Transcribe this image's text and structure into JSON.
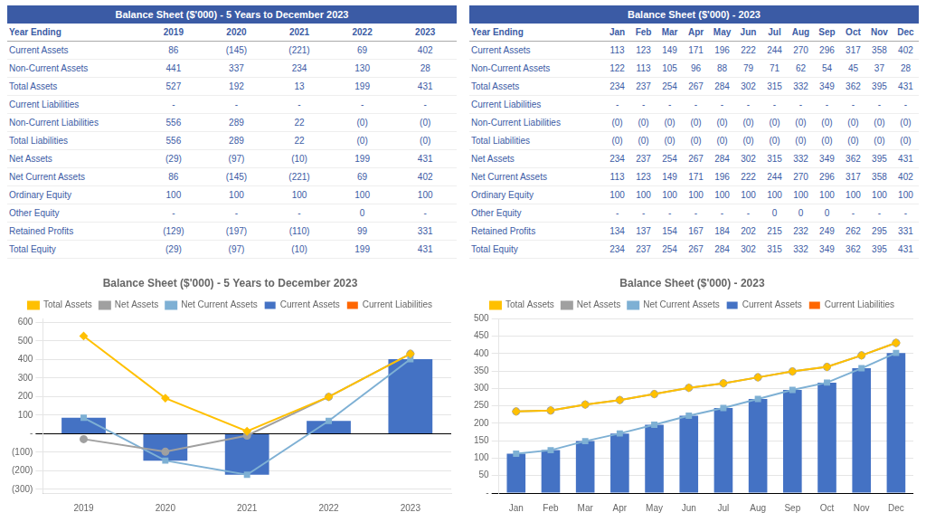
{
  "chart_data": [
    {
      "type": "table",
      "title": "Balance Sheet ($'000) - 5 Years to December 2023",
      "color": "#3B5BA5",
      "row_header": "Year Ending",
      "categories": [
        "2019",
        "2020",
        "2021",
        "2022",
        "2023"
      ],
      "rows": [
        {
          "name": "Current Assets",
          "cells": [
            "86",
            "(145)",
            "(221)",
            "69",
            "402"
          ]
        },
        {
          "name": "Non-Current Assets",
          "cells": [
            "441",
            "337",
            "234",
            "130",
            "28"
          ]
        },
        {
          "name": "Total Assets",
          "cells": [
            "527",
            "192",
            "13",
            "199",
            "431"
          ]
        },
        {
          "name": "Current Liabilities",
          "cells": [
            "-",
            "-",
            "-",
            "-",
            "-"
          ]
        },
        {
          "name": "Non-Current Liabilities",
          "cells": [
            "556",
            "289",
            "22",
            "(0)",
            "(0)"
          ]
        },
        {
          "name": "Total Liabilities",
          "cells": [
            "556",
            "289",
            "22",
            "(0)",
            "(0)"
          ]
        },
        {
          "name": "Net Assets",
          "cells": [
            "(29)",
            "(97)",
            "(10)",
            "199",
            "431"
          ]
        },
        {
          "name": "Net Current Assets",
          "cells": [
            "86",
            "(145)",
            "(221)",
            "69",
            "402"
          ]
        },
        {
          "name": "Ordinary Equity",
          "cells": [
            "100",
            "100",
            "100",
            "100",
            "100"
          ]
        },
        {
          "name": "Other Equity",
          "cells": [
            "-",
            "-",
            "-",
            "0",
            "-"
          ]
        },
        {
          "name": "Retained Profits",
          "cells": [
            "(129)",
            "(197)",
            "(110)",
            "99",
            "331"
          ]
        },
        {
          "name": "Total Equity",
          "cells": [
            "(29)",
            "(97)",
            "(10)",
            "199",
            "431"
          ]
        }
      ]
    },
    {
      "type": "table",
      "title": "Balance Sheet ($'000) - 2023",
      "color": "#3B5BA5",
      "row_header": "Year Ending",
      "categories": [
        "Jan",
        "Feb",
        "Mar",
        "Apr",
        "May",
        "Jun",
        "Jul",
        "Aug",
        "Sep",
        "Oct",
        "Nov",
        "Dec"
      ],
      "rows": [
        {
          "name": "Current Assets",
          "cells": [
            "113",
            "123",
            "149",
            "171",
            "196",
            "222",
            "244",
            "270",
            "296",
            "317",
            "358",
            "402"
          ]
        },
        {
          "name": "Non-Current Assets",
          "cells": [
            "122",
            "113",
            "105",
            "96",
            "88",
            "79",
            "71",
            "62",
            "54",
            "45",
            "37",
            "28"
          ]
        },
        {
          "name": "Total Assets",
          "cells": [
            "234",
            "237",
            "254",
            "267",
            "284",
            "302",
            "315",
            "332",
            "349",
            "362",
            "395",
            "431"
          ]
        },
        {
          "name": "Current Liabilities",
          "cells": [
            "-",
            "-",
            "-",
            "-",
            "-",
            "-",
            "-",
            "-",
            "-",
            "-",
            "-",
            "-"
          ]
        },
        {
          "name": "Non-Current Liabilities",
          "cells": [
            "(0)",
            "(0)",
            "(0)",
            "(0)",
            "(0)",
            "(0)",
            "(0)",
            "(0)",
            "(0)",
            "(0)",
            "(0)",
            "(0)"
          ]
        },
        {
          "name": "Total Liabilities",
          "cells": [
            "(0)",
            "(0)",
            "(0)",
            "(0)",
            "(0)",
            "(0)",
            "(0)",
            "(0)",
            "(0)",
            "(0)",
            "(0)",
            "(0)"
          ]
        },
        {
          "name": "Net Assets",
          "cells": [
            "234",
            "237",
            "254",
            "267",
            "284",
            "302",
            "315",
            "332",
            "349",
            "362",
            "395",
            "431"
          ]
        },
        {
          "name": "Net Current Assets",
          "cells": [
            "113",
            "123",
            "149",
            "171",
            "196",
            "222",
            "244",
            "270",
            "296",
            "317",
            "358",
            "402"
          ]
        },
        {
          "name": "Ordinary Equity",
          "cells": [
            "100",
            "100",
            "100",
            "100",
            "100",
            "100",
            "100",
            "100",
            "100",
            "100",
            "100",
            "100"
          ]
        },
        {
          "name": "Other Equity",
          "cells": [
            "-",
            "-",
            "-",
            "-",
            "-",
            "-",
            "0",
            "0",
            "0",
            "-",
            "-",
            "-"
          ]
        },
        {
          "name": "Retained Profits",
          "cells": [
            "134",
            "137",
            "154",
            "167",
            "184",
            "202",
            "215",
            "232",
            "249",
            "262",
            "295",
            "331"
          ]
        },
        {
          "name": "Total Equity",
          "cells": [
            "234",
            "237",
            "254",
            "267",
            "284",
            "302",
            "315",
            "332",
            "349",
            "362",
            "395",
            "431"
          ]
        }
      ]
    },
    {
      "type": "bar",
      "title": "Balance Sheet ($'000) - 5 Years to December 2023",
      "categories": [
        "2019",
        "2020",
        "2021",
        "2022",
        "2023"
      ],
      "series": [
        {
          "name": "Current Assets",
          "type": "bar",
          "color": "#4472C4",
          "values": [
            86,
            -145,
            -221,
            69,
            402
          ]
        },
        {
          "name": "Current Liabilities",
          "type": "bar",
          "color": "#FF6600",
          "values": [
            null,
            null,
            null,
            null,
            null
          ]
        },
        {
          "name": "Total Assets",
          "type": "line",
          "color": "#FFC000",
          "marker": "diamond",
          "values": [
            527,
            192,
            13,
            199,
            431
          ]
        },
        {
          "name": "Net Assets",
          "type": "line",
          "color": "#A0A0A0",
          "marker": "circle",
          "values": [
            -29,
            -97,
            -10,
            199,
            431
          ]
        },
        {
          "name": "Net Current Assets",
          "type": "line",
          "color": "#7EB0D4",
          "marker": "square",
          "values": [
            86,
            -145,
            -221,
            69,
            402
          ]
        }
      ],
      "ylim": [
        -320,
        620
      ],
      "yticks": [
        {
          "value": -300,
          "label": "(300)"
        },
        {
          "value": -200,
          "label": "(200)"
        },
        {
          "value": -100,
          "label": "(100)"
        },
        {
          "value": 0,
          "label": "-"
        },
        100,
        200,
        300,
        400,
        500,
        600
      ],
      "grid": true,
      "legend": "top"
    },
    {
      "type": "bar",
      "title": "Balance Sheet ($'000) - 2023",
      "categories": [
        "Jan",
        "Feb",
        "Mar",
        "Apr",
        "May",
        "Jun",
        "Jul",
        "Aug",
        "Sep",
        "Oct",
        "Nov",
        "Dec"
      ],
      "series": [
        {
          "name": "Current Assets",
          "type": "bar",
          "color": "#4472C4",
          "values": [
            113,
            123,
            149,
            171,
            196,
            222,
            244,
            270,
            296,
            317,
            358,
            402
          ]
        },
        {
          "name": "Current Liabilities",
          "type": "bar",
          "color": "#FF6600",
          "values": [
            null,
            null,
            null,
            null,
            null,
            null,
            null,
            null,
            null,
            null,
            null,
            null
          ]
        },
        {
          "name": "Total Assets",
          "type": "line",
          "color": "#FFC000",
          "marker": "diamond",
          "values": [
            234,
            237,
            254,
            267,
            284,
            302,
            315,
            332,
            349,
            362,
            395,
            431
          ]
        },
        {
          "name": "Net Assets",
          "type": "line",
          "color": "#A0A0A0",
          "marker": "circle",
          "values": [
            234,
            237,
            254,
            267,
            284,
            302,
            315,
            332,
            349,
            362,
            395,
            431
          ]
        },
        {
          "name": "Net Current Assets",
          "type": "line",
          "color": "#7EB0D4",
          "marker": "square",
          "values": [
            113,
            123,
            149,
            171,
            196,
            222,
            244,
            270,
            296,
            317,
            358,
            402
          ]
        }
      ],
      "ylim": [
        0,
        500
      ],
      "yticks": [
        {
          "value": 0,
          "label": "-"
        },
        50,
        100,
        150,
        200,
        250,
        300,
        350,
        400,
        450,
        500
      ],
      "grid": true,
      "legend": "top"
    }
  ]
}
